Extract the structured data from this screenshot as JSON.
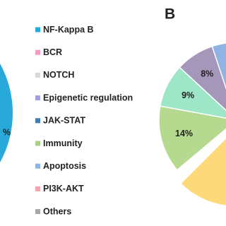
{
  "chart_data": {
    "type": "pie",
    "panel_label": "B",
    "cropped_label": "%",
    "legend": [
      {
        "name": "NF-Kappa B",
        "color": "#29a9d9"
      },
      {
        "name": "BCR",
        "color": "#f49ac1"
      },
      {
        "name": "NOTCH",
        "color": "#d9d9d9"
      },
      {
        "name": "Epigenetic regulation",
        "color": "#a3a0e0"
      },
      {
        "name": "JAK-STAT",
        "color": "#3f7fb5"
      },
      {
        "name": "Immunity",
        "color": "#a9d18e"
      },
      {
        "name": "Apoptosis",
        "color": "#8fb4e3"
      },
      {
        "name": "PI3K-AKT",
        "color": "#f4a3a8"
      },
      {
        "name": "Others",
        "color": "#a6a6a6"
      }
    ],
    "slices": [
      {
        "value": 14,
        "label": "14%",
        "color": "#b5d98f"
      },
      {
        "value": 9,
        "label": "9%",
        "color": "#9ee6c8"
      },
      {
        "value": 8,
        "label": "8%",
        "color": "#a497b9"
      }
    ]
  }
}
